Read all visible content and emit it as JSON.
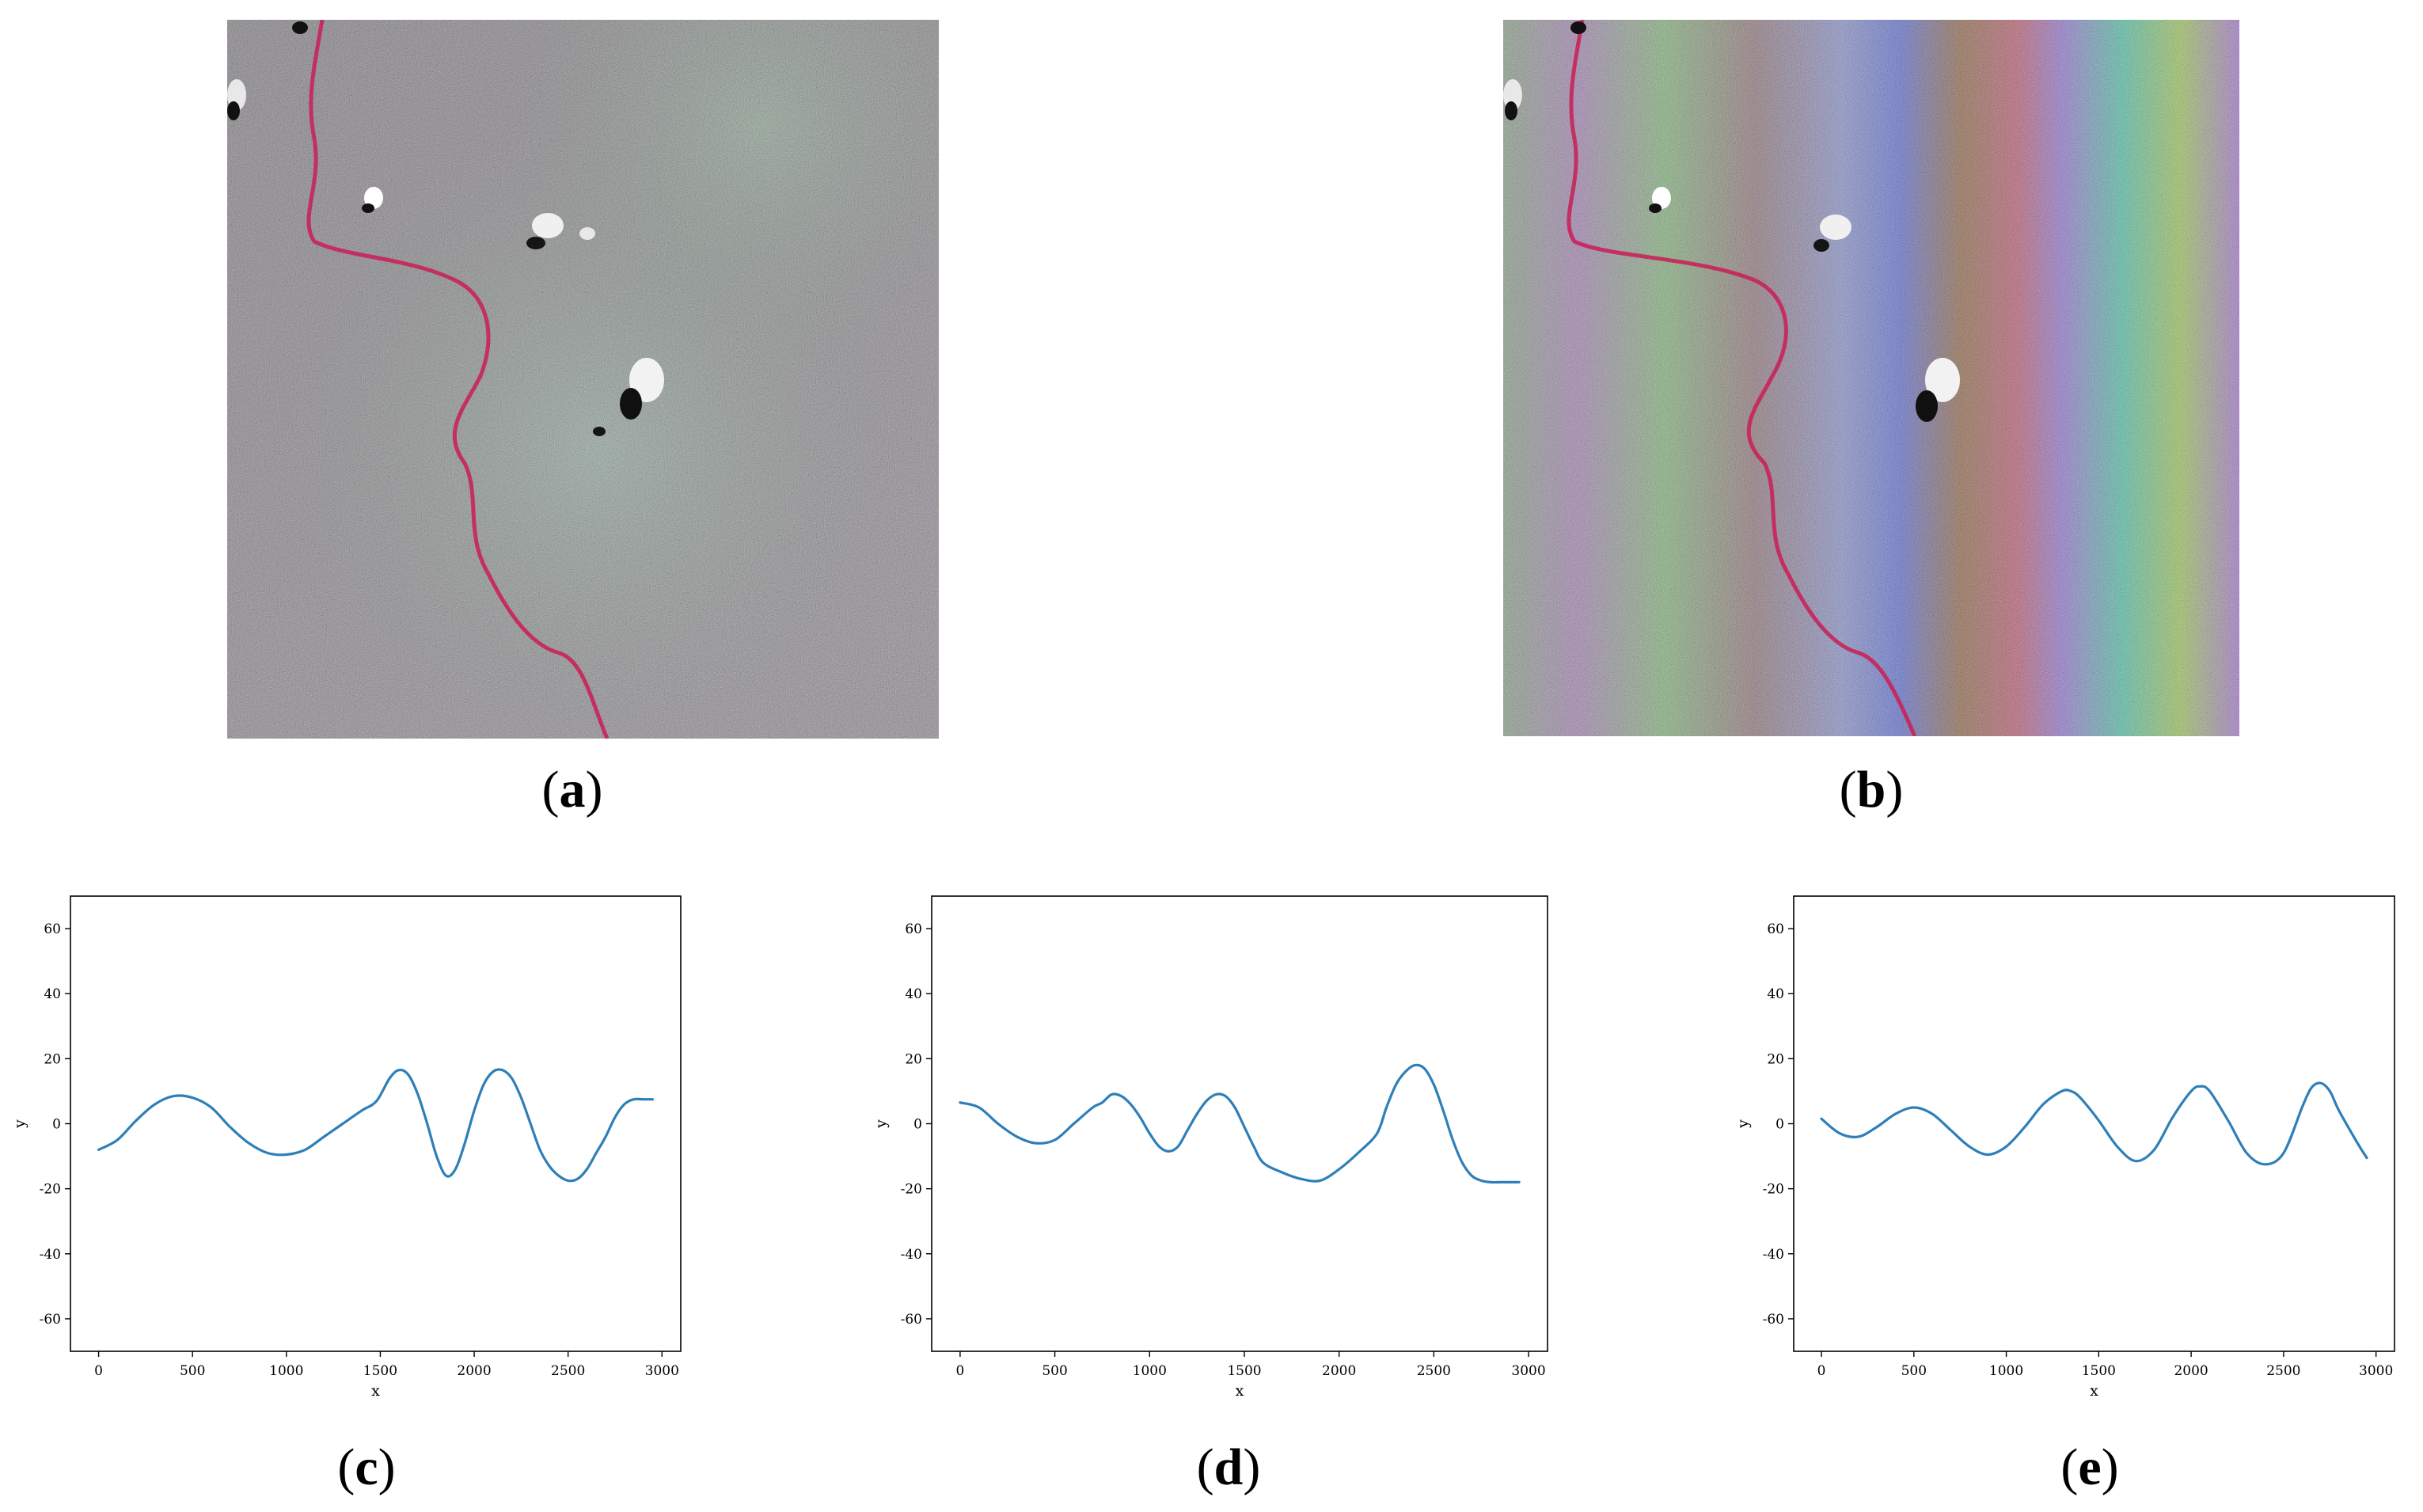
{
  "panels": {
    "a": {
      "label": "a"
    },
    "b": {
      "label": "b"
    },
    "c": {
      "label": "c"
    },
    "d": {
      "label": "d"
    },
    "e": {
      "label": "e"
    }
  },
  "colors": {
    "line": "#2e7fb8",
    "axis": "#000000",
    "river": "#c8245a"
  },
  "chart_data": [
    {
      "type": "line",
      "panel": "c",
      "xlabel": "x",
      "ylabel": "y",
      "xlim": [
        -150,
        3100
      ],
      "ylim": [
        -70,
        70
      ],
      "xticks": [
        0,
        500,
        1000,
        1500,
        2000,
        2500,
        3000
      ],
      "yticks": [
        -60,
        -40,
        -20,
        0,
        20,
        40,
        60
      ],
      "series": [
        {
          "x": [
            0,
            100,
            200,
            300,
            400,
            500,
            600,
            700,
            800,
            900,
            1000,
            1100,
            1200,
            1300,
            1400,
            1480,
            1550,
            1600,
            1650,
            1700,
            1750,
            1800,
            1850,
            1900,
            1950,
            2000,
            2050,
            2100,
            2150,
            2200,
            2250,
            2300,
            2350,
            2400,
            2450,
            2500,
            2550,
            2600,
            2650,
            2700,
            2750,
            2800,
            2850,
            2900,
            2950
          ],
          "y": [
            -8,
            -5,
            1,
            6,
            8.5,
            8,
            5,
            -1,
            -6,
            -9,
            -9.5,
            -8,
            -4,
            0,
            4,
            7,
            14,
            16.5,
            15,
            9,
            0,
            -10,
            -16,
            -14,
            -6,
            4,
            12,
            16,
            16.5,
            14,
            8,
            0,
            -8,
            -13,
            -16,
            -17.5,
            -17,
            -14,
            -9,
            -4,
            2,
            6,
            7.5,
            7.5,
            7.5
          ]
        }
      ]
    },
    {
      "type": "line",
      "panel": "d",
      "xlabel": "x",
      "ylabel": "y",
      "xlim": [
        -150,
        3100
      ],
      "ylim": [
        -70,
        70
      ],
      "xticks": [
        0,
        500,
        1000,
        1500,
        2000,
        2500,
        3000
      ],
      "yticks": [
        -60,
        -40,
        -20,
        0,
        20,
        40,
        60
      ],
      "series": [
        {
          "x": [
            0,
            100,
            200,
            300,
            400,
            500,
            600,
            700,
            750,
            800,
            850,
            900,
            950,
            1000,
            1050,
            1100,
            1150,
            1200,
            1250,
            1300,
            1350,
            1400,
            1450,
            1500,
            1550,
            1600,
            1700,
            1800,
            1900,
            2000,
            2100,
            2200,
            2250,
            2300,
            2350,
            2400,
            2450,
            2500,
            2550,
            2600,
            2650,
            2700,
            2750,
            2800,
            2850,
            2900,
            2950
          ],
          "y": [
            6.5,
            5,
            0,
            -4,
            -6,
            -5,
            0,
            5,
            6.5,
            9,
            8.5,
            6,
            2,
            -3,
            -7,
            -8.5,
            -7,
            -2,
            3,
            7,
            9,
            8.5,
            5,
            -1,
            -7,
            -12,
            -15,
            -17,
            -17.5,
            -14,
            -9,
            -3,
            5,
            12,
            16,
            18,
            17,
            12,
            4,
            -5,
            -12,
            -16,
            -17.5,
            -18,
            -18,
            -18,
            -18
          ]
        }
      ]
    },
    {
      "type": "line",
      "panel": "e",
      "xlabel": "x",
      "ylabel": "y",
      "xlim": [
        -150,
        3100
      ],
      "ylim": [
        -70,
        70
      ],
      "xticks": [
        0,
        500,
        1000,
        1500,
        2000,
        2500,
        3000
      ],
      "yticks": [
        -60,
        -40,
        -20,
        0,
        20,
        40,
        60
      ],
      "series": [
        {
          "x": [
            0,
            100,
            200,
            300,
            400,
            500,
            600,
            700,
            800,
            900,
            1000,
            1100,
            1200,
            1300,
            1350,
            1400,
            1500,
            1600,
            1700,
            1800,
            1900,
            2000,
            2050,
            2100,
            2200,
            2300,
            2400,
            2500,
            2600,
            2650,
            2700,
            2750,
            2800,
            2900,
            2950
          ],
          "y": [
            1.5,
            -3,
            -4,
            -1,
            3,
            5,
            3,
            -2,
            -7,
            -9.5,
            -7,
            -1,
            6,
            10,
            10,
            8,
            1,
            -7,
            -11.5,
            -8,
            2,
            10,
            11.5,
            10,
            1,
            -9,
            -12.5,
            -9,
            5,
            11,
            12.5,
            10,
            4,
            -6,
            -10.5
          ]
        }
      ]
    }
  ]
}
